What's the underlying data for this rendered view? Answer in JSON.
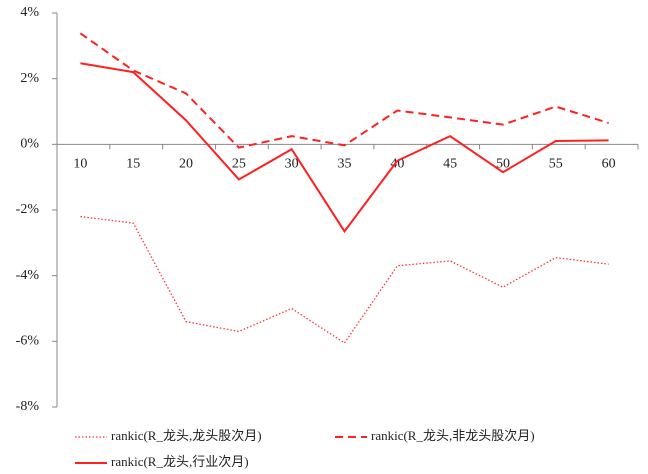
{
  "chart_data": {
    "type": "line",
    "categories": [
      "10",
      "15",
      "20",
      "25",
      "30",
      "35",
      "40",
      "45",
      "50",
      "55",
      "60"
    ],
    "series": [
      {
        "name": "rankic(R_龙头,龙头股次月)",
        "color": "#ff3333",
        "dash": "dotted",
        "values": [
          -2.2,
          -2.4,
          -5.4,
          -5.7,
          -5.0,
          -6.05,
          -3.7,
          -3.55,
          -4.35,
          -3.45,
          -3.65
        ]
      },
      {
        "name": "rankic(R_龙头,非龙头股次月)",
        "color": "#ff2020",
        "dash": "dashed",
        "values": [
          3.38,
          2.25,
          1.55,
          -0.1,
          0.25,
          -0.03,
          1.03,
          0.82,
          0.6,
          1.15,
          0.65
        ]
      },
      {
        "name": "rankic(R_龙头,行业次月)",
        "color": "#ff2020",
        "dash": "solid",
        "values": [
          2.47,
          2.2,
          0.73,
          -1.07,
          -0.15,
          -2.65,
          -0.5,
          0.25,
          -0.85,
          0.1,
          0.12
        ]
      }
    ],
    "ylim": [
      -8,
      4
    ],
    "yticks": [
      {
        "value": -8,
        "label": "-8%"
      },
      {
        "value": -6,
        "label": "-6%"
      },
      {
        "value": -4,
        "label": "-4%"
      },
      {
        "value": -2,
        "label": "-2%"
      },
      {
        "value": 0,
        "label": "0%"
      },
      {
        "value": 2,
        "label": "2%"
      },
      {
        "value": 4,
        "label": "4%"
      }
    ],
    "grid": false,
    "legend": "bottom"
  }
}
